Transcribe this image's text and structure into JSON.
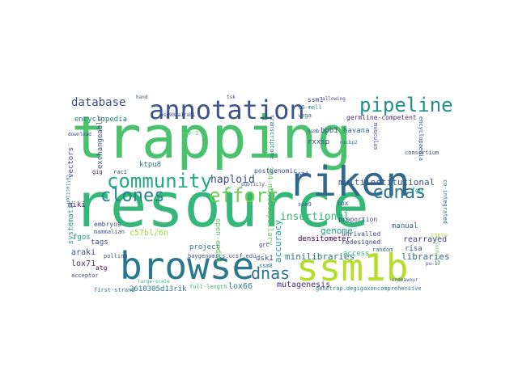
{
  "cloud": {
    "words": [
      {
        "id": "trapping",
        "text": "trapping",
        "color": "#4ac16d"
      },
      {
        "id": "resource",
        "text": "resource",
        "color": "#35b779"
      },
      {
        "id": "riken",
        "text": "riken",
        "color": "#31688e"
      },
      {
        "id": "browse",
        "text": "browse",
        "color": "#2a788e"
      },
      {
        "id": "ssm1b",
        "text": "ssm1b",
        "color": "#b5de2b"
      },
      {
        "id": "annotation",
        "text": "annotation",
        "color": "#3b528b"
      },
      {
        "id": "community",
        "text": "community",
        "color": "#22a884"
      },
      {
        "id": "pipeline",
        "text": "pipeline",
        "color": "#21918c"
      },
      {
        "id": "effort",
        "text": "effort",
        "color": "#6ece58"
      },
      {
        "id": "clones",
        "text": "clones",
        "color": "#26828e"
      },
      {
        "id": "cdnas",
        "text": "cdnas",
        "color": "#2c728e"
      },
      {
        "id": "database",
        "text": "database",
        "color": "#3e4a89"
      },
      {
        "id": "dnas",
        "text": "dnas",
        "color": "#2c728e"
      },
      {
        "id": "insertional",
        "text": "insertional",
        "color": "#35b779"
      },
      {
        "id": "multiinstitutional",
        "text": "multiinstitutional",
        "color": "#3b528b"
      },
      {
        "id": "haploid",
        "text": "haploid",
        "color": "#3e4a89"
      },
      {
        "id": "accuracy",
        "text": "accuracy",
        "color": "#1fa088"
      },
      {
        "id": "genome",
        "text": "genome",
        "color": "#1f9e89"
      },
      {
        "id": "minilibraries",
        "text": "minilibraries",
        "color": "#2a788e"
      },
      {
        "id": "libraries",
        "text": "libraries",
        "color": "#31688e"
      },
      {
        "id": "rearrayed",
        "text": "rearrayed",
        "color": "#414487"
      },
      {
        "id": "mutagenesis",
        "text": "mutagenesis",
        "color": "#482878"
      },
      {
        "id": "lox66",
        "text": "lox66",
        "color": "#25858e"
      },
      {
        "id": "c57",
        "text": "c57bl/6n",
        "color": "#9fda3a"
      },
      {
        "id": "araki",
        "text": "araki",
        "color": "#3e4a89"
      },
      {
        "id": "lox71",
        "text": "lox71",
        "color": "#472d7b"
      },
      {
        "id": "systematic",
        "text": "systematic",
        "color": "#22a884"
      },
      {
        "id": "encyclopedia",
        "text": "encyclopedia",
        "color": "#2a788e"
      },
      {
        "id": "exchangeable",
        "text": "exchangeable",
        "color": "#3b528b"
      },
      {
        "id": "havana",
        "text": "havana",
        "color": "#31688e"
      },
      {
        "id": "bpb1",
        "text": "bpb1",
        "color": "#3e4a89"
      },
      {
        "id": "germline",
        "text": "germline-competent",
        "color": "#482878"
      },
      {
        "id": "densitometer",
        "text": "densitometer",
        "color": "#440154"
      },
      {
        "id": "ktpu8",
        "text": "ktpu8",
        "color": "#2c728e"
      },
      {
        "id": "vectors",
        "text": "vectors",
        "color": "#3e4a89"
      },
      {
        "id": "fgos",
        "text": "fgos",
        "color": "#1fa088"
      },
      {
        "id": "project",
        "text": "project",
        "color": "#2c728e"
      },
      {
        "id": "tags",
        "text": "tags",
        "color": "#3e4a89"
      },
      {
        "id": "miki",
        "text": "miki",
        "color": "#481f70"
      },
      {
        "id": "manual",
        "text": "manual",
        "color": "#31688e"
      },
      {
        "id": "risa",
        "text": "risa",
        "color": "#3b528b"
      },
      {
        "id": "access",
        "text": "access",
        "color": "#35b779"
      },
      {
        "id": "dsk1",
        "text": "dsk1",
        "color": "#3b528b"
      },
      {
        "id": "multicap",
        "text": "384-multicapillary",
        "color": "#5ec962"
      },
      {
        "id": "openended",
        "text": "open-ended",
        "color": "#5ec962"
      },
      {
        "id": "fgo",
        "text": "fgo",
        "color": "#1f9e89"
      },
      {
        "id": "lox",
        "text": "lox",
        "color": "#3e4a89"
      },
      {
        "id": "rxxsp",
        "text": "rxxsp",
        "color": "#3e4a89"
      },
      {
        "id": "d13",
        "text": "2610305d13rik",
        "color": "#2a788e"
      },
      {
        "id": "firststrand",
        "text": "first-strand",
        "color": "#2c728e"
      },
      {
        "id": "fulllength",
        "text": "full-length",
        "color": "#35b779"
      },
      {
        "id": "genetrap",
        "text": "genetrap.degigaxoncomprehensive",
        "color": "#2a788e"
      },
      {
        "id": "baygenomics",
        "text": "baygenomics.ucsf.edu",
        "color": "#3b528b"
      },
      {
        "id": "unrivalled",
        "text": "unrivalled",
        "color": "#3e4a89"
      },
      {
        "id": "redesigned",
        "text": "redesigned",
        "color": "#3e4a89"
      },
      {
        "id": "proportion",
        "text": "proportion",
        "color": "#3e4a89"
      },
      {
        "id": "postgenomic",
        "text": "postgenomic",
        "color": "#3b528b"
      },
      {
        "id": "transcriptome",
        "text": "transcriptome",
        "color": "#2c728e"
      },
      {
        "id": "ssm1",
        "text": "ssm1",
        "color": "#3e4a89"
      },
      {
        "id": "mell",
        "text": "96-mell",
        "color": "#2a788e"
      },
      {
        "id": "vega",
        "text": "vega",
        "color": "#31688e"
      },
      {
        "id": "ssm9",
        "text": "ssm9",
        "color": "#3b528b"
      },
      {
        "id": "polling",
        "text": "polling",
        "color": "#3e4a89"
      },
      {
        "id": "atg",
        "text": "atg",
        "color": "#440154"
      },
      {
        "id": "embryos",
        "text": "embryos",
        "color": "#3e4a89"
      },
      {
        "id": "mammalian",
        "text": "mammalian",
        "color": "#3b528b"
      },
      {
        "id": "gig",
        "text": "gig",
        "color": "#482878"
      },
      {
        "id": "rac1",
        "text": "rac1",
        "color": "#3e4a89"
      },
      {
        "id": "acceptor",
        "text": "acceptor",
        "color": "#3e4a89"
      },
      {
        "id": "largescale",
        "text": "large-scale",
        "color": "#35b779"
      },
      {
        "id": "grc",
        "text": "grc",
        "color": "#482878"
      },
      {
        "id": "publicly",
        "text": "publicly",
        "color": "#3b528b"
      },
      {
        "id": "hsp90",
        "text": "hsp90aa1rab1",
        "color": "#3e4a89"
      },
      {
        "id": "mycbp2",
        "text": "mycbp2",
        "color": "#2a788e"
      },
      {
        "id": "musculus",
        "text": "musculus",
        "color": "#3e4a89"
      },
      {
        "id": "consortium",
        "text": "consortium",
        "color": "#3e4a89"
      },
      {
        "id": "encyclopaedia",
        "text": "encyclopaedia",
        "color": "#3b528b"
      },
      {
        "id": "scientific",
        "text": "scientific",
        "color": "#6ece58"
      },
      {
        "id": "puo",
        "text": "pu-17",
        "color": "#3e4a89"
      },
      {
        "id": "endeavour",
        "text": "endeavour",
        "color": "#3e4a89"
      },
      {
        "id": "coint",
        "text": "co-integrated",
        "color": "#2c728e"
      },
      {
        "id": "ctpio",
        "text": "ctpio",
        "color": "#b5de2b"
      },
      {
        "id": "random",
        "text": "random",
        "color": "#31688e"
      },
      {
        "id": "ssm4",
        "text": "ssm4",
        "color": "#3e4a89"
      },
      {
        "id": "ssm8",
        "text": "ssm8",
        "color": "#2a788e"
      },
      {
        "id": "allowing",
        "text": "allowing",
        "color": "#3e4a89"
      },
      {
        "id": "hand",
        "text": "hand",
        "color": "#3e4a89"
      },
      {
        "id": "tsk",
        "text": "tsk",
        "color": "#3e4a89"
      },
      {
        "id": "download",
        "text": "download",
        "color": "#3e4a89"
      },
      {
        "id": "collection",
        "text": "collection",
        "color": "#2a788e"
      },
      {
        "id": "rev",
        "text": "rev-1",
        "color": "#5ec962"
      },
      {
        "id": "nsmb",
        "text": "nsmb",
        "color": "#3e4a89"
      }
    ]
  }
}
